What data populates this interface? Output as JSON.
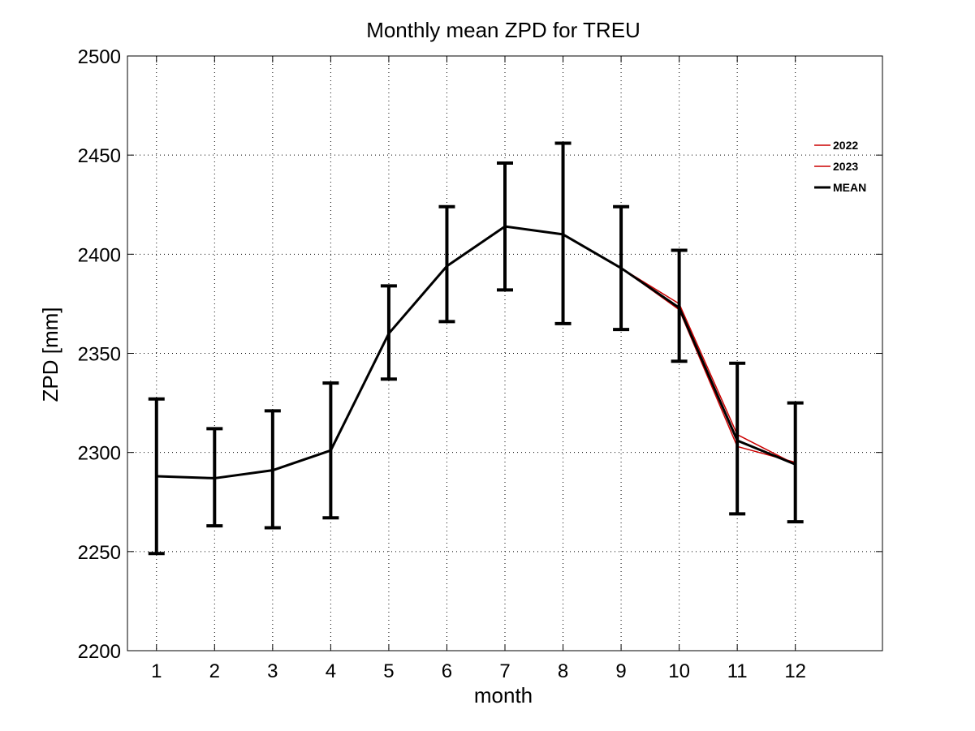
{
  "chart_data": {
    "type": "line",
    "title": "Monthly mean ZPD for TREU",
    "xlabel": "month",
    "ylabel": "ZPD [mm]",
    "x": [
      1,
      2,
      3,
      4,
      5,
      6,
      7,
      8,
      9,
      10,
      11,
      12
    ],
    "xticks": [
      "1",
      "2",
      "3",
      "4",
      "5",
      "6",
      "7",
      "8",
      "9",
      "10",
      "11",
      "12"
    ],
    "xlim": [
      0.5,
      13.5
    ],
    "ylim": [
      2200,
      2500
    ],
    "yticks": [
      "2200",
      "2250",
      "2300",
      "2350",
      "2400",
      "2450",
      "2500"
    ],
    "grid": true,
    "legend_position": "top-right",
    "series": [
      {
        "name": "2022",
        "color": "#cc0000",
        "line_width": "thin",
        "values": [
          2288,
          2287,
          2291,
          2301,
          2360,
          2394,
          2414,
          2410,
          2393,
          2375,
          2309,
          2294
        ]
      },
      {
        "name": "2023",
        "color": "#cc0000",
        "line_width": "thin",
        "values": [
          2288,
          2287,
          2291,
          2301,
          2360,
          2394,
          2414,
          2410,
          2393,
          2372,
          2303,
          2295
        ]
      },
      {
        "name": "MEAN",
        "color": "#000000",
        "line_width": "thick",
        "values": [
          2288,
          2287,
          2291,
          2301,
          2360,
          2394,
          2414,
          2410,
          2393,
          2373,
          2306,
          2294
        ],
        "error_low": [
          2249,
          2263,
          2262,
          2267,
          2337,
          2366,
          2382,
          2365,
          2362,
          2346,
          2269,
          2265
        ],
        "error_high": [
          2327,
          2312,
          2321,
          2335,
          2384,
          2424,
          2446,
          2456,
          2424,
          2402,
          2345,
          2325
        ]
      }
    ]
  }
}
